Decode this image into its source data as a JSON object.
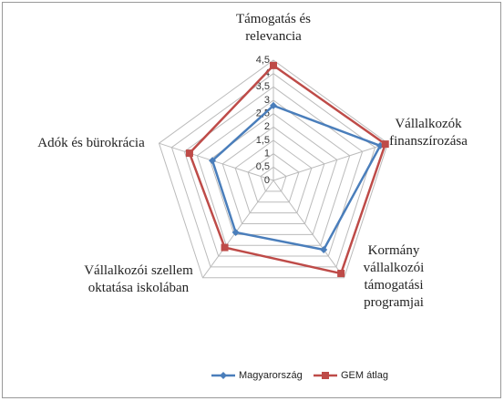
{
  "chart_data": {
    "type": "radar",
    "categories": [
      [
        "Támogatás és",
        "relevancia"
      ],
      [
        "Vállalkozók",
        "finanszírozása"
      ],
      [
        "Kormány",
        "vállalkozói",
        "támogatási",
        "programjai"
      ],
      [
        "Vállalkozói szellem",
        "oktatása iskolában"
      ],
      [
        "Adók és bürokrácia"
      ]
    ],
    "series": [
      {
        "name": "Magyarország",
        "color": "#4a7ebb",
        "values": [
          2.8,
          4.2,
          3.2,
          2.4,
          2.4
        ]
      },
      {
        "name": "GEM átlag",
        "color": "#be4b48",
        "values": [
          4.3,
          4.4,
          4.3,
          3.1,
          3.3
        ]
      }
    ],
    "ylim": [
      0,
      4.5
    ],
    "yticks": [
      0,
      {
        "value": 0.5,
        "label": "0,5"
      },
      1,
      {
        "value": 1.5,
        "label": "1,5"
      },
      2,
      {
        "value": 2.5,
        "label": "2,5"
      },
      3,
      {
        "value": 3.5,
        "label": "3,5"
      },
      4,
      {
        "value": 4.5,
        "label": "4,5"
      }
    ],
    "grid": true,
    "legend": "bottom"
  }
}
